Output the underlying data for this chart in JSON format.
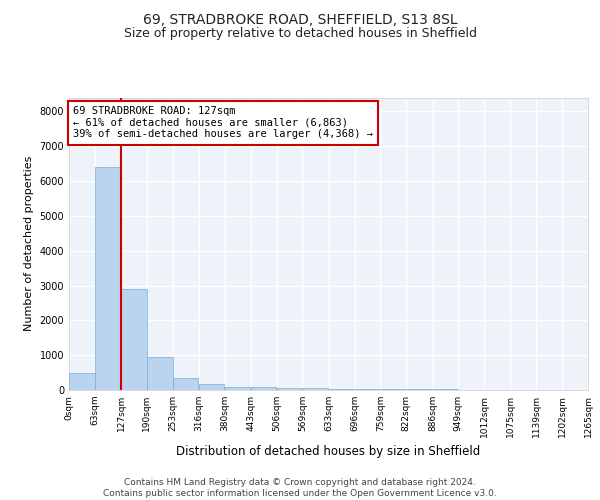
{
  "title1": "69, STRADBROKE ROAD, SHEFFIELD, S13 8SL",
  "title2": "Size of property relative to detached houses in Sheffield",
  "xlabel": "Distribution of detached houses by size in Sheffield",
  "ylabel": "Number of detached properties",
  "bar_color": "#bad4ed",
  "bar_edge_color": "#7aafd4",
  "bin_labels": [
    "0sqm",
    "63sqm",
    "127sqm",
    "190sqm",
    "253sqm",
    "316sqm",
    "380sqm",
    "443sqm",
    "506sqm",
    "569sqm",
    "633sqm",
    "696sqm",
    "759sqm",
    "822sqm",
    "886sqm",
    "949sqm",
    "1012sqm",
    "1075sqm",
    "1139sqm",
    "1202sqm",
    "1265sqm"
  ],
  "bin_edges": [
    0,
    63,
    127,
    190,
    253,
    316,
    380,
    443,
    506,
    569,
    633,
    696,
    759,
    822,
    886,
    949,
    1012,
    1075,
    1139,
    1202,
    1265
  ],
  "bar_heights": [
    500,
    6400,
    2900,
    950,
    350,
    175,
    100,
    75,
    60,
    50,
    40,
    30,
    25,
    20,
    15,
    12,
    10,
    8,
    7,
    6
  ],
  "property_size": 127,
  "annotation_line1": "69 STRADBROKE ROAD: 127sqm",
  "annotation_line2": "← 61% of detached houses are smaller (6,863)",
  "annotation_line3": "39% of semi-detached houses are larger (4,368) →",
  "annotation_box_color": "#ffffff",
  "annotation_box_edge_color": "#cc0000",
  "vline_color": "#cc0000",
  "ylim": [
    0,
    8400
  ],
  "yticks": [
    0,
    1000,
    2000,
    3000,
    4000,
    5000,
    6000,
    7000,
    8000
  ],
  "footer_text": "Contains HM Land Registry data © Crown copyright and database right 2024.\nContains public sector information licensed under the Open Government Licence v3.0.",
  "bg_color": "#eef2f9",
  "grid_color": "#ffffff",
  "title1_fontsize": 10,
  "title2_fontsize": 9,
  "annotation_fontsize": 7.5,
  "footer_fontsize": 6.5,
  "ylabel_fontsize": 8,
  "xlabel_fontsize": 8.5,
  "tick_fontsize": 6.5
}
